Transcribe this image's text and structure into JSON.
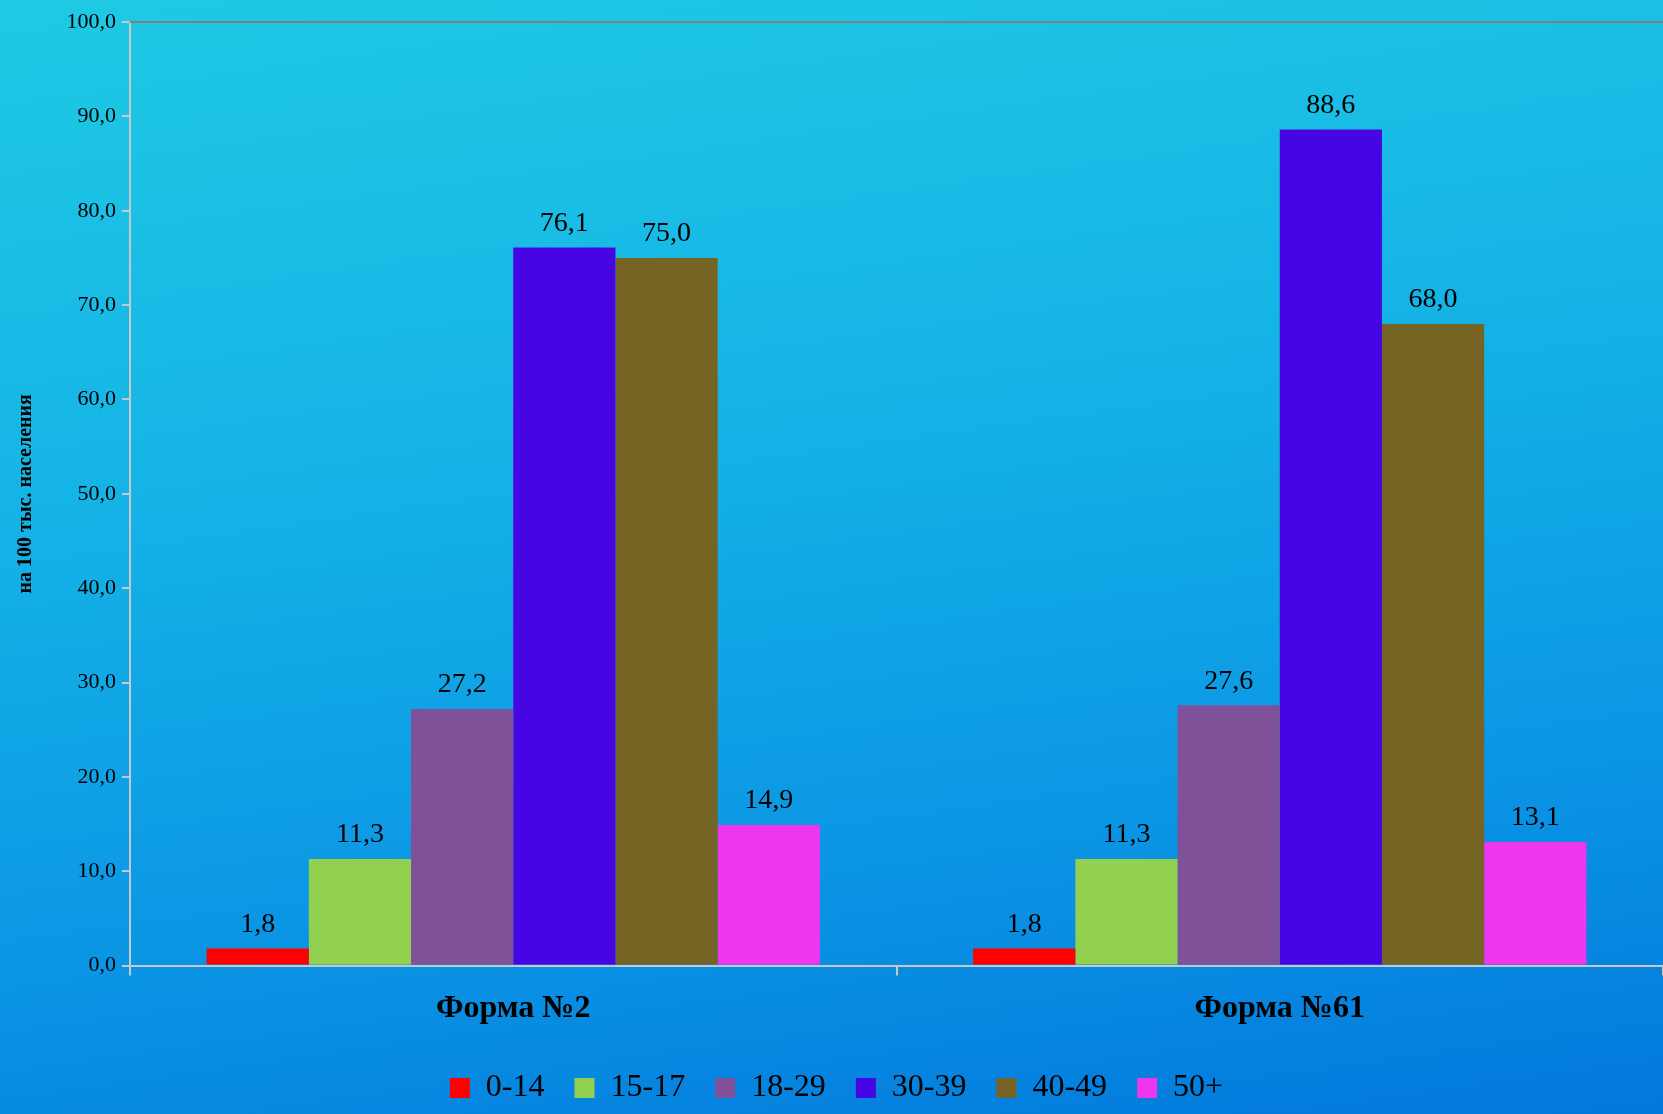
{
  "chart_data": {
    "type": "bar",
    "ylabel": "на 100 тыс. населения",
    "categories": [
      "Форма №2",
      "Форма №61"
    ],
    "series": [
      {
        "name": "0-14",
        "color": "#ff0000",
        "values": [
          1.8,
          1.8
        ],
        "value_labels": [
          "1,8",
          "1,8"
        ]
      },
      {
        "name": "15-17",
        "color": "#92d050",
        "values": [
          11.3,
          11.3
        ],
        "value_labels": [
          "11,3",
          "11,3"
        ]
      },
      {
        "name": "18-29",
        "color": "#7f5198",
        "values": [
          27.2,
          27.6
        ],
        "value_labels": [
          "27,2",
          "27,6"
        ]
      },
      {
        "name": "30-39",
        "color": "#4606e3",
        "values": [
          76.1,
          88.6
        ],
        "value_labels": [
          "76,1",
          "88,6"
        ]
      },
      {
        "name": "40-49",
        "color": "#766425",
        "values": [
          75.0,
          68.0
        ],
        "value_labels": [
          "75,0",
          "68,0"
        ]
      },
      {
        "name": "50+",
        "color": "#ef36ef",
        "values": [
          14.9,
          13.1
        ],
        "value_labels": [
          "14,9",
          "13,1"
        ]
      }
    ],
    "ylim": [
      0,
      100
    ],
    "yticks": [
      {
        "value": 0,
        "label": "0,0"
      },
      {
        "value": 10,
        "label": "10,0"
      },
      {
        "value": 20,
        "label": "20,0"
      },
      {
        "value": 30,
        "label": "30,0"
      },
      {
        "value": 40,
        "label": "40,0"
      },
      {
        "value": 50,
        "label": "50,0"
      },
      {
        "value": 60,
        "label": "60,0"
      },
      {
        "value": 70,
        "label": "70,0"
      },
      {
        "value": 80,
        "label": "80,0"
      },
      {
        "value": 90,
        "label": "90,0"
      },
      {
        "value": 100,
        "label": "100,0"
      }
    ],
    "legend": "bottom"
  }
}
